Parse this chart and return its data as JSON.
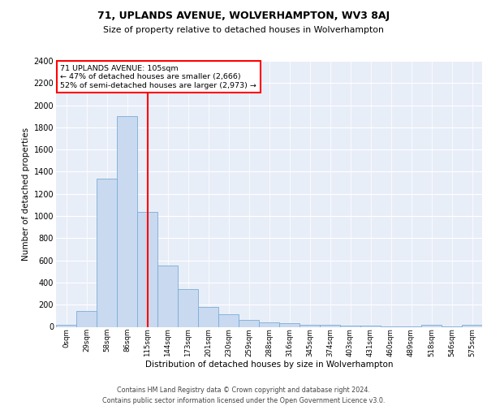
{
  "title1": "71, UPLANDS AVENUE, WOLVERHAMPTON, WV3 8AJ",
  "title2": "Size of property relative to detached houses in Wolverhampton",
  "xlabel": "Distribution of detached houses by size in Wolverhampton",
  "ylabel": "Number of detached properties",
  "footnote1": "Contains HM Land Registry data © Crown copyright and database right 2024.",
  "footnote2": "Contains public sector information licensed under the Open Government Licence v3.0.",
  "bar_labels": [
    "0sqm",
    "29sqm",
    "58sqm",
    "86sqm",
    "115sqm",
    "144sqm",
    "173sqm",
    "201sqm",
    "230sqm",
    "259sqm",
    "288sqm",
    "316sqm",
    "345sqm",
    "374sqm",
    "403sqm",
    "431sqm",
    "460sqm",
    "489sqm",
    "518sqm",
    "546sqm",
    "575sqm"
  ],
  "bar_values": [
    20,
    140,
    1340,
    1900,
    1040,
    550,
    340,
    180,
    115,
    60,
    40,
    30,
    20,
    15,
    12,
    10,
    5,
    5,
    20,
    5,
    20
  ],
  "bar_color": "#c9d9f0",
  "bar_edgecolor": "#7aadd6",
  "bg_color": "#e8eef8",
  "grid_color": "#ffffff",
  "ylim": [
    0,
    2400
  ],
  "yticks": [
    0,
    200,
    400,
    600,
    800,
    1000,
    1200,
    1400,
    1600,
    1800,
    2000,
    2200,
    2400
  ],
  "vline_color": "red",
  "annotation_title": "71 UPLANDS AVENUE: 105sqm",
  "annotation_line1": "← 47% of detached houses are smaller (2,666)",
  "annotation_line2": "52% of semi-detached houses are larger (2,973) →",
  "annotation_box_color": "white",
  "annotation_box_edgecolor": "red"
}
